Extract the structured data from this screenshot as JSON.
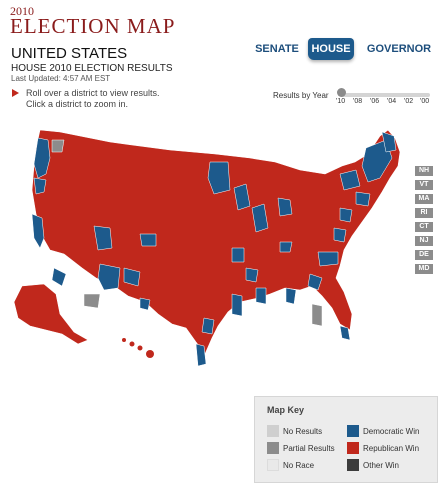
{
  "header": {
    "year": "2010",
    "title": "ELECTION MAP",
    "region": "UNITED STATES",
    "subtitle": "HOUSE 2010 ELECTION RESULTS",
    "last_updated": "Last Updated: 4:57 AM EST",
    "hint_line1": "Roll over a district to view results.",
    "hint_line2": "Click a district to zoom in."
  },
  "tabs": [
    {
      "label": "SENATE",
      "active": false
    },
    {
      "label": "HOUSE",
      "active": true
    },
    {
      "label": "GOVERNOR",
      "active": false
    }
  ],
  "years_slider": {
    "label": "Results by Year",
    "years": [
      "'10",
      "'08",
      "'06",
      "'04",
      "'02",
      "'00"
    ],
    "selected": "'10"
  },
  "small_state_labels": [
    "NH",
    "VT",
    "MA",
    "RI",
    "CT",
    "NJ",
    "DE",
    "MD"
  ],
  "map_key": {
    "title": "Map Key",
    "items": [
      {
        "label": "No Results",
        "color": "#cfcfcf"
      },
      {
        "label": "Partial Results",
        "color": "#8c8c8c"
      },
      {
        "label": "No Race",
        "color": "#e9e9e9"
      },
      {
        "label": "Democratic Win",
        "color": "#1d5a8c"
      },
      {
        "label": "Republican Win",
        "color": "#c0281c"
      },
      {
        "label": "Other Win",
        "color": "#3c3c3c"
      }
    ]
  },
  "colors": {
    "republican": "#c0281c",
    "democratic": "#1d5a8c",
    "partial": "#8c8c8c",
    "accent": "#8a1b1b"
  }
}
